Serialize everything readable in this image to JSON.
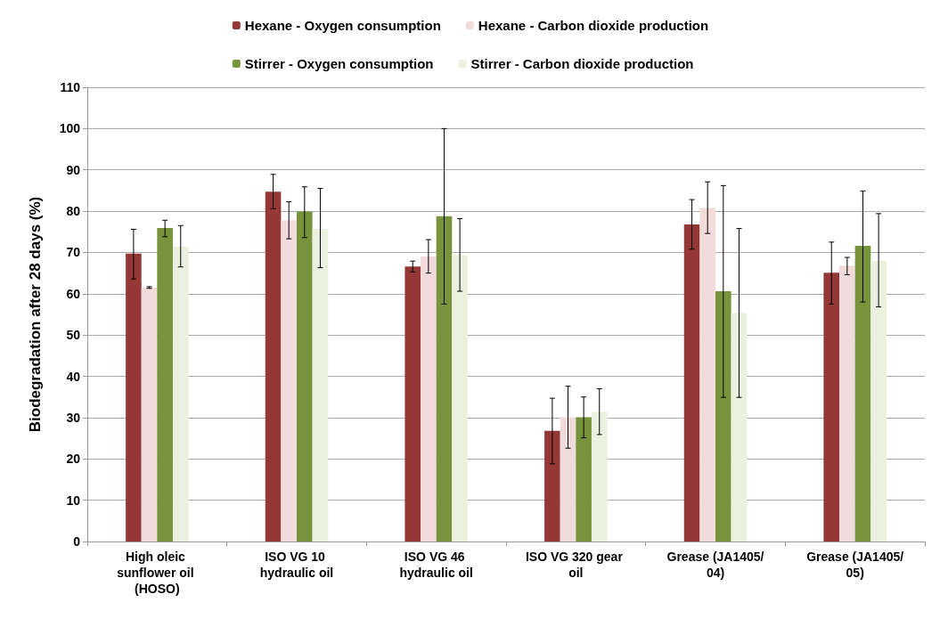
{
  "chart_data": {
    "type": "bar",
    "ylabel": "Biodegradation after 28 days (%)",
    "categories": [
      "High oleic sunflower oil (HOSO)",
      "ISO VG 10 hydraulic oil",
      "ISO VG 46 hydraulic oil",
      "ISO VG 320 gear oil",
      "Grease (JA1405/04)",
      "Grease (JA1405/05)"
    ],
    "series": [
      {
        "name": "Hexane - Oxygen consumption",
        "color": "#953735",
        "values": [
          69.7,
          84.7,
          66.6,
          26.8,
          76.8,
          65.1
        ],
        "errors": [
          [
            63.6,
            75.6
          ],
          [
            80.6,
            88.9
          ],
          [
            65.3,
            67.9
          ],
          [
            18.8,
            34.7
          ],
          [
            70.8,
            82.8
          ],
          [
            57.5,
            72.5
          ]
        ]
      },
      {
        "name": "Hexane - Carbon dioxide production",
        "color": "#f2dcdb",
        "values": [
          61.5,
          77.8,
          69.0,
          30.1,
          80.8,
          66.8
        ],
        "errors": [
          [
            61.3,
            61.7
          ],
          [
            73.3,
            82.3
          ],
          [
            65.0,
            73.1
          ],
          [
            22.6,
            37.6
          ],
          [
            74.6,
            87.1
          ],
          [
            64.6,
            68.8
          ]
        ]
      },
      {
        "name": "Stirrer - Oxygen consumption",
        "color": "#77933c",
        "values": [
          75.9,
          79.9,
          78.8,
          30.1,
          60.6,
          71.6
        ],
        "errors": [
          [
            73.8,
            77.8
          ],
          [
            73.6,
            85.9
          ],
          [
            57.5,
            100
          ],
          [
            25.1,
            35.0
          ],
          [
            34.9,
            86.2
          ],
          [
            58.0,
            84.9
          ]
        ]
      },
      {
        "name": "Stirrer - Carbon dioxide production",
        "color": "#ebf1de",
        "values": [
          71.4,
          75.7,
          69.4,
          31.4,
          55.4,
          68.0
        ],
        "errors": [
          [
            66.5,
            76.5
          ],
          [
            66.3,
            85.5
          ],
          [
            60.6,
            78.2
          ],
          [
            25.9,
            37.0
          ],
          [
            34.9,
            75.8
          ],
          [
            56.8,
            79.4
          ]
        ]
      }
    ],
    "ylim": [
      0,
      110
    ],
    "yticks": [
      0,
      10,
      20,
      30,
      40,
      50,
      60,
      70,
      80,
      90,
      100,
      110
    ],
    "grid": "y",
    "legend": "top"
  }
}
